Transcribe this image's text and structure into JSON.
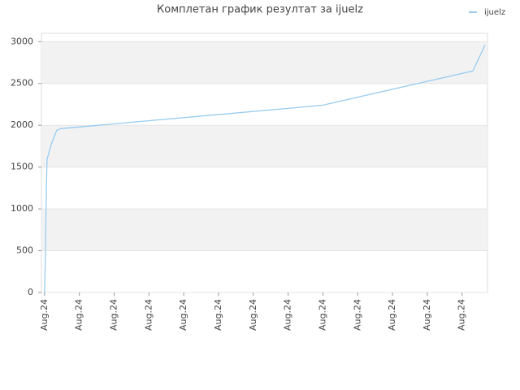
{
  "chart_data": {
    "type": "line",
    "title": "Комплетан график резултат за ijuelz",
    "x": [
      0,
      0.02,
      0.05,
      0.07,
      0.19,
      0.35,
      0.47,
      7.99,
      12.31,
      12.66
    ],
    "series": [
      {
        "name": "ijuelz",
        "color": "#99ccf0",
        "values": [
          0,
          390,
          1180,
          1590,
          1770,
          1940,
          1960,
          2240,
          2650,
          2960
        ]
      }
    ],
    "xlim": [
      -0.09,
      12.73
    ],
    "xticks": [
      {
        "value": 0,
        "label": "Aug.24"
      },
      {
        "value": 1,
        "label": "Aug.24"
      },
      {
        "value": 2,
        "label": "Aug.24"
      },
      {
        "value": 3,
        "label": "Aug.24"
      },
      {
        "value": 4,
        "label": "Aug.24"
      },
      {
        "value": 5,
        "label": "Aug.24"
      },
      {
        "value": 6,
        "label": "Aug.24"
      },
      {
        "value": 7,
        "label": "Aug.24"
      },
      {
        "value": 8,
        "label": "Aug.24"
      },
      {
        "value": 9,
        "label": "Aug.24"
      },
      {
        "value": 10,
        "label": "Aug.24"
      },
      {
        "value": 11,
        "label": "Aug.24"
      },
      {
        "value": 12,
        "label": "Aug.24"
      }
    ],
    "ylim": [
      0,
      3100
    ],
    "yticks": [
      0,
      500,
      1000,
      1500,
      2000,
      2500,
      3000
    ],
    "grid": true
  }
}
